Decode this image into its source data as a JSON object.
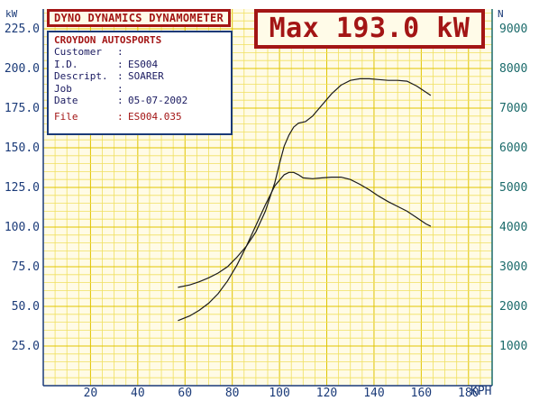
{
  "header": {
    "title": "DYNO DYNAMICS DYNAMOMETER",
    "max_label": "Max 193.0 kW"
  },
  "info": {
    "company": "CROYDON AUTOSPORTS",
    "rows": [
      {
        "label": "Customer",
        "value": ""
      },
      {
        "label": "I.D.",
        "value": "ES004"
      },
      {
        "label": "Descript.",
        "value": "SOARER"
      },
      {
        "label": "Job",
        "value": ""
      },
      {
        "label": "Date",
        "value": "05-07-2002"
      }
    ],
    "file_label": "File",
    "file_value": "ES004.035"
  },
  "chart_data": {
    "type": "line",
    "xlabel": "KPH",
    "ylabel": "kW",
    "y2label": "N",
    "xlim": [
      0,
      190
    ],
    "ylim": [
      0,
      237.5
    ],
    "y2lim": [
      0,
      9500
    ],
    "grid": true,
    "xticks": [
      20,
      40,
      60,
      80,
      100,
      120,
      140,
      160,
      180
    ],
    "yticks": [
      "25.0",
      "50.0",
      "75.0",
      "100.0",
      "125.0",
      "150.0",
      "175.0",
      "200.0",
      "225.0"
    ],
    "y2ticks": [
      1000,
      2000,
      3000,
      4000,
      5000,
      6000,
      7000,
      8000,
      9000
    ],
    "series": [
      {
        "axis": "left",
        "x": [
          57,
          62,
          66,
          70,
          74,
          78,
          82,
          86,
          90,
          94,
          98,
          100,
          102,
          104,
          106,
          108,
          111,
          114,
          118,
          122,
          126,
          130,
          134,
          138,
          142,
          146,
          150,
          154,
          158,
          160,
          164
        ],
        "y": [
          62,
          63.5,
          65.5,
          68,
          71,
          75,
          81,
          88,
          97,
          110,
          128,
          140,
          151,
          158,
          163,
          165.5,
          166.5,
          170,
          177,
          184,
          189.5,
          192.5,
          193.5,
          193.5,
          193,
          192.5,
          192.5,
          192,
          189,
          187,
          183
        ]
      },
      {
        "axis": "left",
        "x": [
          57,
          62,
          66,
          70,
          74,
          78,
          82,
          86,
          90,
          94,
          98,
          102,
          104,
          106,
          108,
          110,
          114,
          118,
          122,
          126,
          130,
          134,
          138,
          142,
          146,
          150,
          154,
          158,
          162,
          164
        ],
        "y": [
          41,
          44,
          47.5,
          52,
          58,
          66,
          76,
          88,
          101,
          114,
          126,
          133,
          134.5,
          134.5,
          133,
          131,
          130.5,
          131,
          131.5,
          131.5,
          130,
          127,
          123.5,
          119.5,
          116,
          113,
          110,
          106,
          102,
          100.5
        ]
      }
    ]
  }
}
